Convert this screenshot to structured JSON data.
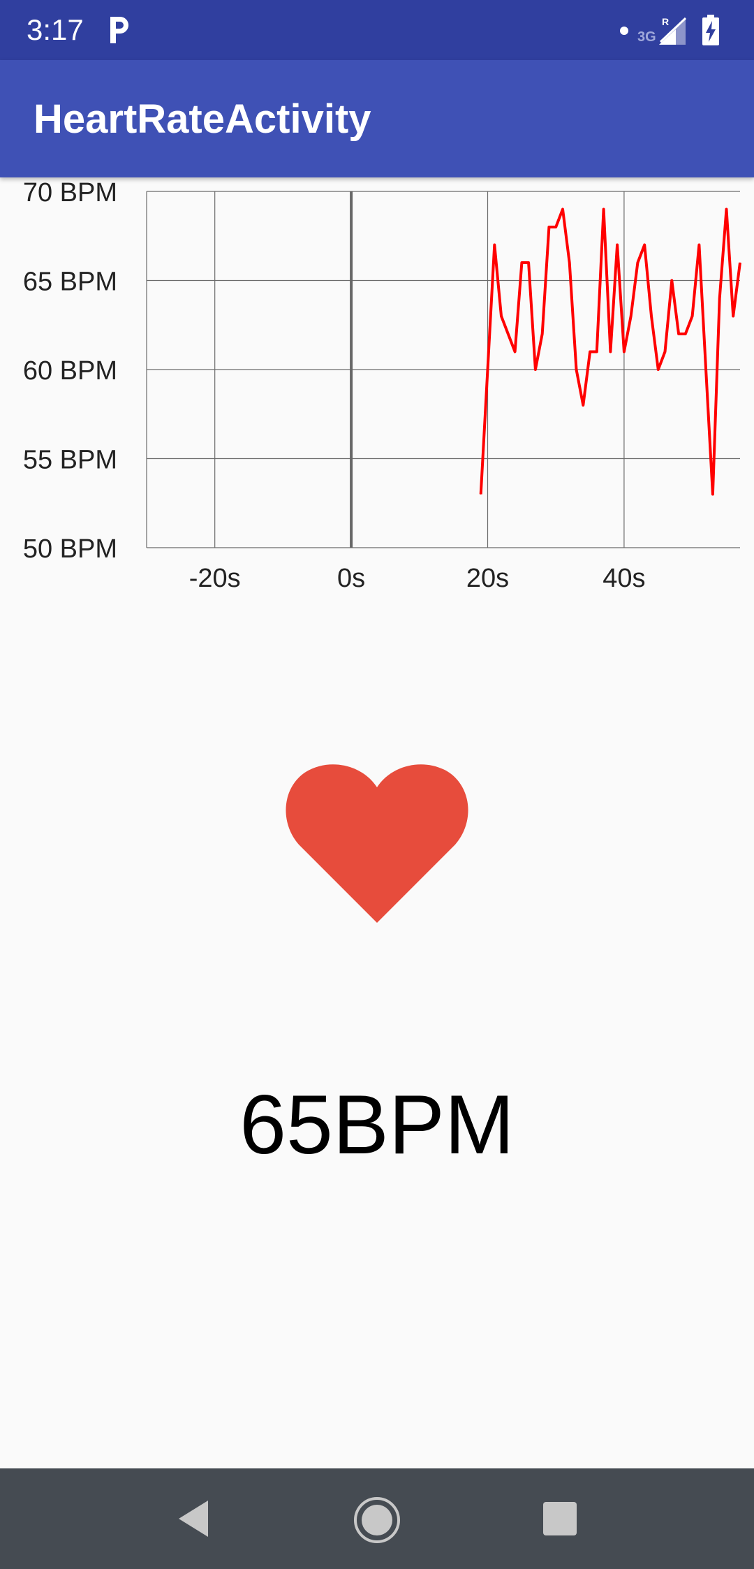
{
  "status_bar": {
    "time": "3:17",
    "network_label": "3G",
    "icons": [
      "parking-icon",
      "notification-dot-icon",
      "signal-roaming-icon",
      "battery-charging-icon"
    ]
  },
  "app_bar": {
    "title": "HeartRateActivity",
    "color": "#3f51b5"
  },
  "chart_data": {
    "type": "line",
    "title": "",
    "xlabel": "",
    "ylabel": "",
    "xlim": [
      -30,
      57
    ],
    "ylim": [
      50,
      70
    ],
    "x_ticks": [
      -20,
      0,
      20,
      40
    ],
    "x_tick_labels": [
      "-20s",
      "0s",
      "20s",
      "40s"
    ],
    "y_ticks": [
      50,
      55,
      60,
      65,
      70
    ],
    "y_tick_labels": [
      "50 BPM",
      "55 BPM",
      "60 BPM",
      "65 BPM",
      "70 BPM"
    ],
    "grid": true,
    "series": [
      {
        "color": "#ff0000",
        "points": [
          [
            19,
            53
          ],
          [
            20,
            60
          ],
          [
            21,
            67
          ],
          [
            22,
            63
          ],
          [
            23,
            62
          ],
          [
            24,
            61
          ],
          [
            25,
            66
          ],
          [
            26,
            66
          ],
          [
            27,
            60
          ],
          [
            28,
            62
          ],
          [
            29,
            68
          ],
          [
            30,
            68
          ],
          [
            31,
            69
          ],
          [
            32,
            66
          ],
          [
            33,
            60
          ],
          [
            34,
            58
          ],
          [
            35,
            61
          ],
          [
            36,
            61
          ],
          [
            37,
            69
          ],
          [
            38,
            61
          ],
          [
            39,
            67
          ],
          [
            40,
            61
          ],
          [
            41,
            63
          ],
          [
            42,
            66
          ],
          [
            43,
            67
          ],
          [
            44,
            63
          ],
          [
            45,
            60
          ],
          [
            46,
            61
          ],
          [
            47,
            65
          ],
          [
            48,
            62
          ],
          [
            49,
            62
          ],
          [
            50,
            63
          ],
          [
            51,
            67
          ],
          [
            52,
            60
          ],
          [
            53,
            53
          ],
          [
            54,
            64
          ],
          [
            55,
            69
          ],
          [
            56,
            63
          ],
          [
            57,
            66
          ]
        ]
      }
    ]
  },
  "heart": {
    "icon": "heart-icon",
    "color": "#e74c3c"
  },
  "bpm_display": "65BPM",
  "nav_bar": {
    "back": "back-icon",
    "home": "home-icon",
    "recents": "recents-icon"
  }
}
